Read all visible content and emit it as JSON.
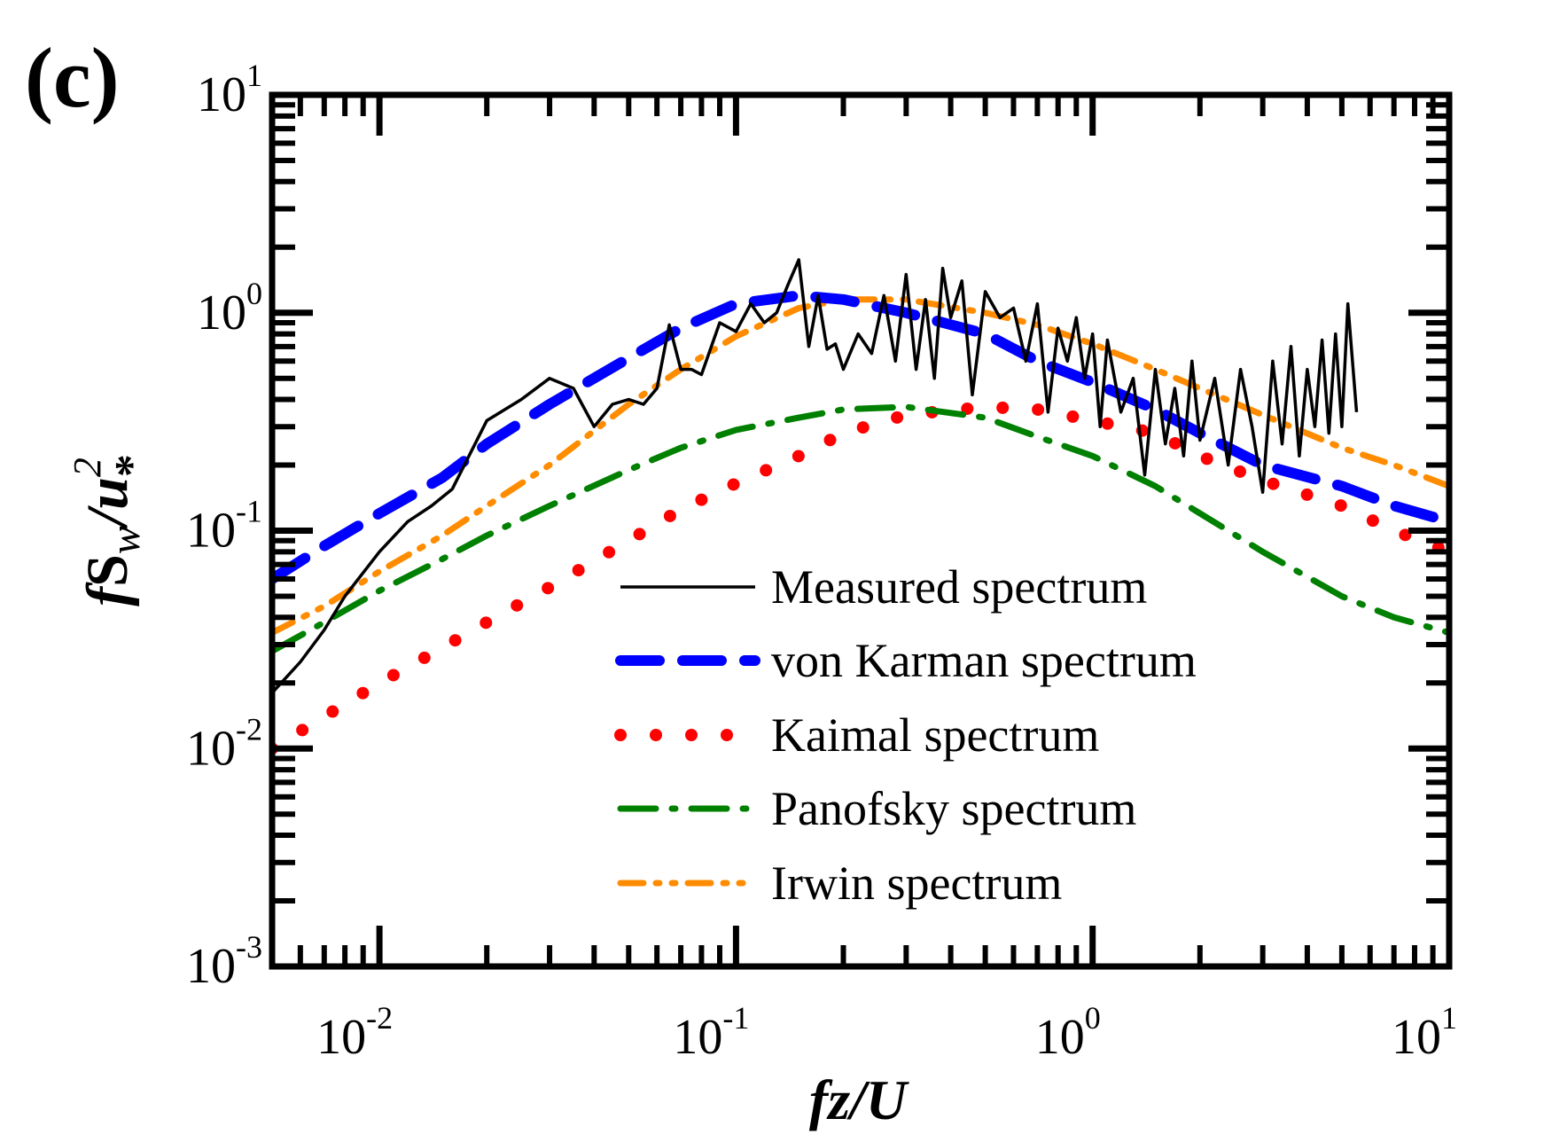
{
  "chart_data": {
    "type": "line",
    "panel_label": "(c)",
    "x_scale": "log",
    "y_scale": "log",
    "xlim": [
      0.005,
      10
    ],
    "ylim": [
      0.001,
      10
    ],
    "x_ticks": [
      {
        "value": 0.01,
        "base": "10",
        "exp": "-2"
      },
      {
        "value": 0.1,
        "base": "10",
        "exp": "-1"
      },
      {
        "value": 1,
        "base": "10",
        "exp": "0"
      },
      {
        "value": 10,
        "base": "10",
        "exp": "1"
      }
    ],
    "y_ticks": [
      {
        "value": 10,
        "base": "10",
        "exp": "1"
      },
      {
        "value": 1,
        "base": "10",
        "exp": "0"
      },
      {
        "value": 0.1,
        "base": "10",
        "exp": "-1"
      },
      {
        "value": 0.01,
        "base": "10",
        "exp": "-2"
      },
      {
        "value": 0.001,
        "base": "10",
        "exp": "-3"
      }
    ],
    "xlabel": "fz/U",
    "ylabel": {
      "f": "f",
      "S": "S",
      "w": "w",
      "slash": "/",
      "u": "u",
      "two": "2",
      "star": "*"
    },
    "grid": false,
    "legend_position": "lower-center",
    "series": [
      {
        "name": "Measured spectrum",
        "color": "#000000",
        "style": "solid",
        "x": [
          0.005,
          0.006,
          0.007,
          0.008,
          0.01,
          0.012,
          0.014,
          0.016,
          0.02,
          0.025,
          0.03,
          0.035,
          0.04,
          0.045,
          0.05,
          0.055,
          0.06,
          0.065,
          0.07,
          0.075,
          0.08,
          0.09,
          0.1,
          0.11,
          0.12,
          0.13,
          0.14,
          0.15,
          0.16,
          0.17,
          0.18,
          0.19,
          0.2,
          0.22,
          0.24,
          0.26,
          0.28,
          0.3,
          0.32,
          0.34,
          0.36,
          0.38,
          0.4,
          0.43,
          0.46,
          0.5,
          0.55,
          0.6,
          0.65,
          0.7,
          0.75,
          0.8,
          0.85,
          0.9,
          0.95,
          1.0,
          1.05,
          1.1,
          1.2,
          1.3,
          1.4,
          1.5,
          1.6,
          1.7,
          1.8,
          1.9,
          2.0,
          2.2,
          2.4,
          2.6,
          2.8,
          3.0,
          3.2,
          3.4,
          3.6,
          3.8,
          4.0,
          4.2,
          4.4,
          4.6,
          4.8,
          5.0,
          5.2,
          5.5
        ],
        "values": [
          0.018,
          0.025,
          0.035,
          0.05,
          0.08,
          0.11,
          0.13,
          0.155,
          0.32,
          0.4,
          0.5,
          0.45,
          0.3,
          0.38,
          0.4,
          0.38,
          0.45,
          0.88,
          0.55,
          0.55,
          0.52,
          0.9,
          0.82,
          1.1,
          0.9,
          1.0,
          1.35,
          1.75,
          0.7,
          1.2,
          0.68,
          0.72,
          0.55,
          0.8,
          0.65,
          1.2,
          0.6,
          1.5,
          0.55,
          1.15,
          0.5,
          1.6,
          0.95,
          1.4,
          0.42,
          1.25,
          0.95,
          1.05,
          0.6,
          1.1,
          0.35,
          0.85,
          0.6,
          0.95,
          0.5,
          0.8,
          0.3,
          0.75,
          0.35,
          0.5,
          0.18,
          0.55,
          0.25,
          0.45,
          0.22,
          0.6,
          0.26,
          0.5,
          0.2,
          0.55,
          0.3,
          0.15,
          0.6,
          0.25,
          0.7,
          0.22,
          0.55,
          0.3,
          0.75,
          0.28,
          0.8,
          0.3,
          1.1,
          0.35
        ]
      },
      {
        "name": "von Karman spectrum",
        "color": "#0000ff",
        "style": "dashed",
        "x": [
          0.005,
          0.007,
          0.01,
          0.015,
          0.02,
          0.03,
          0.05,
          0.07,
          0.1,
          0.15,
          0.2,
          0.3,
          0.5,
          0.7,
          1,
          1.5,
          2,
          3,
          5,
          7,
          10
        ],
        "values": [
          0.06,
          0.085,
          0.12,
          0.175,
          0.25,
          0.38,
          0.62,
          0.85,
          1.1,
          1.2,
          1.15,
          1.0,
          0.8,
          0.6,
          0.48,
          0.36,
          0.28,
          0.2,
          0.16,
          0.13,
          0.11
        ]
      },
      {
        "name": "Kaimal spectrum",
        "color": "#ff0000",
        "style": "dotted",
        "x": [
          0.005,
          0.007,
          0.01,
          0.015,
          0.02,
          0.03,
          0.05,
          0.07,
          0.1,
          0.15,
          0.2,
          0.3,
          0.5,
          0.7,
          1,
          1.5,
          2,
          3,
          5,
          7,
          10
        ],
        "values": [
          0.01,
          0.014,
          0.02,
          0.029,
          0.038,
          0.055,
          0.09,
          0.125,
          0.165,
          0.22,
          0.28,
          0.34,
          0.37,
          0.36,
          0.32,
          0.28,
          0.22,
          0.17,
          0.13,
          0.1,
          0.08
        ]
      },
      {
        "name": "Panofsky spectrum",
        "color": "#008000",
        "style": "dashdot",
        "x": [
          0.005,
          0.007,
          0.01,
          0.015,
          0.02,
          0.03,
          0.05,
          0.07,
          0.1,
          0.15,
          0.2,
          0.3,
          0.5,
          0.7,
          1,
          1.5,
          2,
          3,
          5,
          7,
          10
        ],
        "values": [
          0.028,
          0.038,
          0.053,
          0.074,
          0.095,
          0.13,
          0.19,
          0.24,
          0.29,
          0.33,
          0.36,
          0.37,
          0.33,
          0.27,
          0.22,
          0.16,
          0.12,
          0.08,
          0.05,
          0.04,
          0.034
        ]
      },
      {
        "name": "Irwin spectrum",
        "color": "#ff8c00",
        "style": "dashdotdot",
        "x": [
          0.005,
          0.007,
          0.01,
          0.015,
          0.02,
          0.03,
          0.05,
          0.07,
          0.1,
          0.15,
          0.2,
          0.3,
          0.5,
          0.7,
          1,
          1.5,
          2,
          3,
          5,
          7,
          10
        ],
        "values": [
          0.034,
          0.045,
          0.065,
          0.095,
          0.13,
          0.2,
          0.38,
          0.55,
          0.78,
          1.05,
          1.15,
          1.15,
          1.0,
          0.88,
          0.72,
          0.55,
          0.45,
          0.34,
          0.24,
          0.2,
          0.16
        ]
      }
    ]
  }
}
